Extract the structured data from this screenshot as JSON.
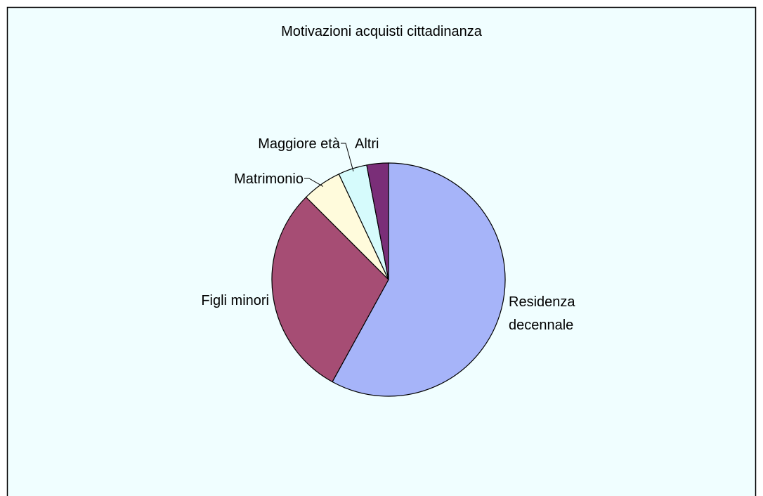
{
  "chart_data": {
    "type": "pie",
    "title": "Motivazioni acquisti cittadinanza",
    "categories": [
      "Residenza decennale",
      "Figli minori",
      "Matrimonio",
      "Maggiore età",
      "Altri"
    ],
    "values": [
      58,
      29.5,
      5.5,
      4,
      3
    ],
    "colors": [
      "#a6b4f9",
      "#a64d74",
      "#fffbdc",
      "#d6fbfc",
      "#7a2e78"
    ]
  }
}
